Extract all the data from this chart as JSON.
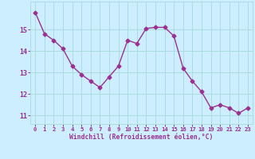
{
  "x": [
    0,
    1,
    2,
    3,
    4,
    5,
    6,
    7,
    8,
    9,
    10,
    11,
    12,
    13,
    14,
    15,
    16,
    17,
    18,
    19,
    20,
    21,
    22,
    23
  ],
  "y": [
    15.8,
    14.8,
    14.5,
    14.1,
    13.3,
    12.9,
    12.6,
    12.3,
    12.8,
    13.3,
    14.5,
    14.35,
    15.05,
    15.1,
    15.1,
    14.7,
    13.2,
    12.6,
    12.1,
    11.35,
    11.5,
    11.35,
    11.1,
    11.35
  ],
  "line_color": "#9b3090",
  "marker": "D",
  "marker_size": 2.5,
  "bg_color": "#cceeff",
  "grid_color": "#aadddd",
  "axis_color": "#9b3090",
  "xlabel": "Windchill (Refroidissement éolien,°C)",
  "xtick_labels": [
    "0",
    "1",
    "2",
    "3",
    "4",
    "5",
    "6",
    "7",
    "8",
    "9",
    "10",
    "11",
    "12",
    "13",
    "14",
    "15",
    "16",
    "17",
    "18",
    "19",
    "20",
    "21",
    "22",
    "23"
  ],
  "ytick_labels": [
    "11",
    "12",
    "13",
    "14",
    "15"
  ],
  "ylim": [
    10.6,
    16.3
  ],
  "xlim": [
    -0.5,
    23.5
  ]
}
